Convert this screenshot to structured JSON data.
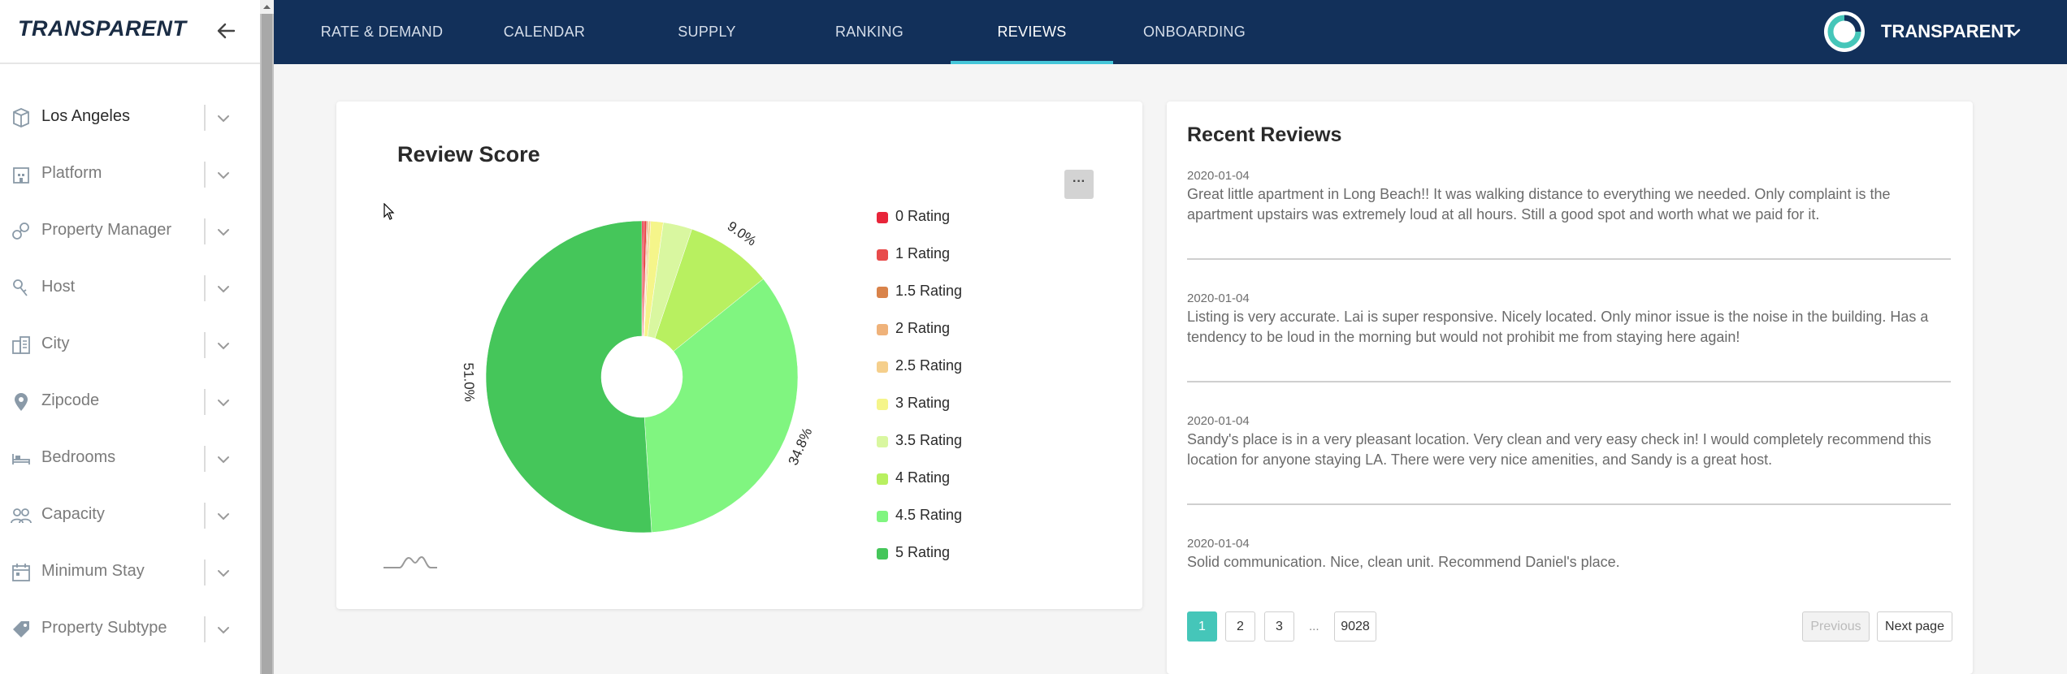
{
  "sidebar": {
    "brand": "TRANSPARENT",
    "filters": [
      {
        "label": "Los Angeles",
        "icon": "cube-icon",
        "active": true
      },
      {
        "label": "Platform",
        "icon": "building-icon",
        "active": false
      },
      {
        "label": "Property Manager",
        "icon": "link-icon",
        "active": false
      },
      {
        "label": "Host",
        "icon": "key-icon",
        "active": false
      },
      {
        "label": "City",
        "icon": "city-icon",
        "active": false
      },
      {
        "label": "Zipcode",
        "icon": "map-pin-icon",
        "active": false
      },
      {
        "label": "Bedrooms",
        "icon": "bed-icon",
        "active": false
      },
      {
        "label": "Capacity",
        "icon": "people-icon",
        "active": false
      },
      {
        "label": "Minimum Stay",
        "icon": "calendar-icon",
        "active": false
      },
      {
        "label": "Property Subtype",
        "icon": "tag-icon",
        "active": false
      }
    ]
  },
  "nav": {
    "tabs": [
      "RATE & DEMAND",
      "CALENDAR",
      "SUPPLY",
      "RANKING",
      "REVIEWS",
      "ONBOARDING"
    ],
    "active_tab": "REVIEWS",
    "account_name": "TRANSPARENT"
  },
  "score_card": {
    "title": "Review Score",
    "menu_label": "···"
  },
  "chart_data": {
    "type": "pie",
    "title": "Review Score",
    "donut": true,
    "categories": [
      "0 Rating",
      "1 Rating",
      "1.5 Rating",
      "2 Rating",
      "2.5 Rating",
      "3 Rating",
      "3.5 Rating",
      "4 Rating",
      "4.5 Rating",
      "5 Rating"
    ],
    "values": [
      0.2,
      0.3,
      0.1,
      0.1,
      0.2,
      1.3,
      3.0,
      9.0,
      34.8,
      51.0
    ],
    "value_labels": {
      "4 Rating": "9.0%",
      "4.5 Rating": "34.8%",
      "5 Rating": "51.0%"
    },
    "colors": [
      "#e8253a",
      "#e84b4b",
      "#d9834a",
      "#efb27a",
      "#f5cf8c",
      "#f5f58a",
      "#d9f7a0",
      "#b8f060",
      "#80f580",
      "#45c65a"
    ],
    "legend_position": "right"
  },
  "reviews_card": {
    "title": "Recent Reviews",
    "reviews": [
      {
        "date": "2020-01-04",
        "text": "Great little apartment in Long Beach!! It was walking distance to everything we needed. Only complaint is the apartment upstairs was extremely loud at all hours. Still a good spot and worth what we paid for it."
      },
      {
        "date": "2020-01-04",
        "text": "Listing is very accurate. Lai is super responsive. Nicely located. Only minor issue is the noise in the building. Has a tendency to be loud in the morning but would not prohibit me from staying here again!"
      },
      {
        "date": "2020-01-04",
        "text": "Sandy's place is in a very pleasant location. Very clean and very easy check in! I would completely recommend this location for anyone staying LA. There were very nice amenities, and Sandy is a great host."
      },
      {
        "date": "2020-01-04",
        "text": "Solid communication. Nice, clean unit. Recommend Daniel's place."
      }
    ],
    "pagination": {
      "pages": [
        "1",
        "2",
        "3"
      ],
      "ellipsis": "...",
      "last_page": "9028",
      "current": "1",
      "previous_label": "Previous",
      "next_label": "Next page"
    }
  }
}
